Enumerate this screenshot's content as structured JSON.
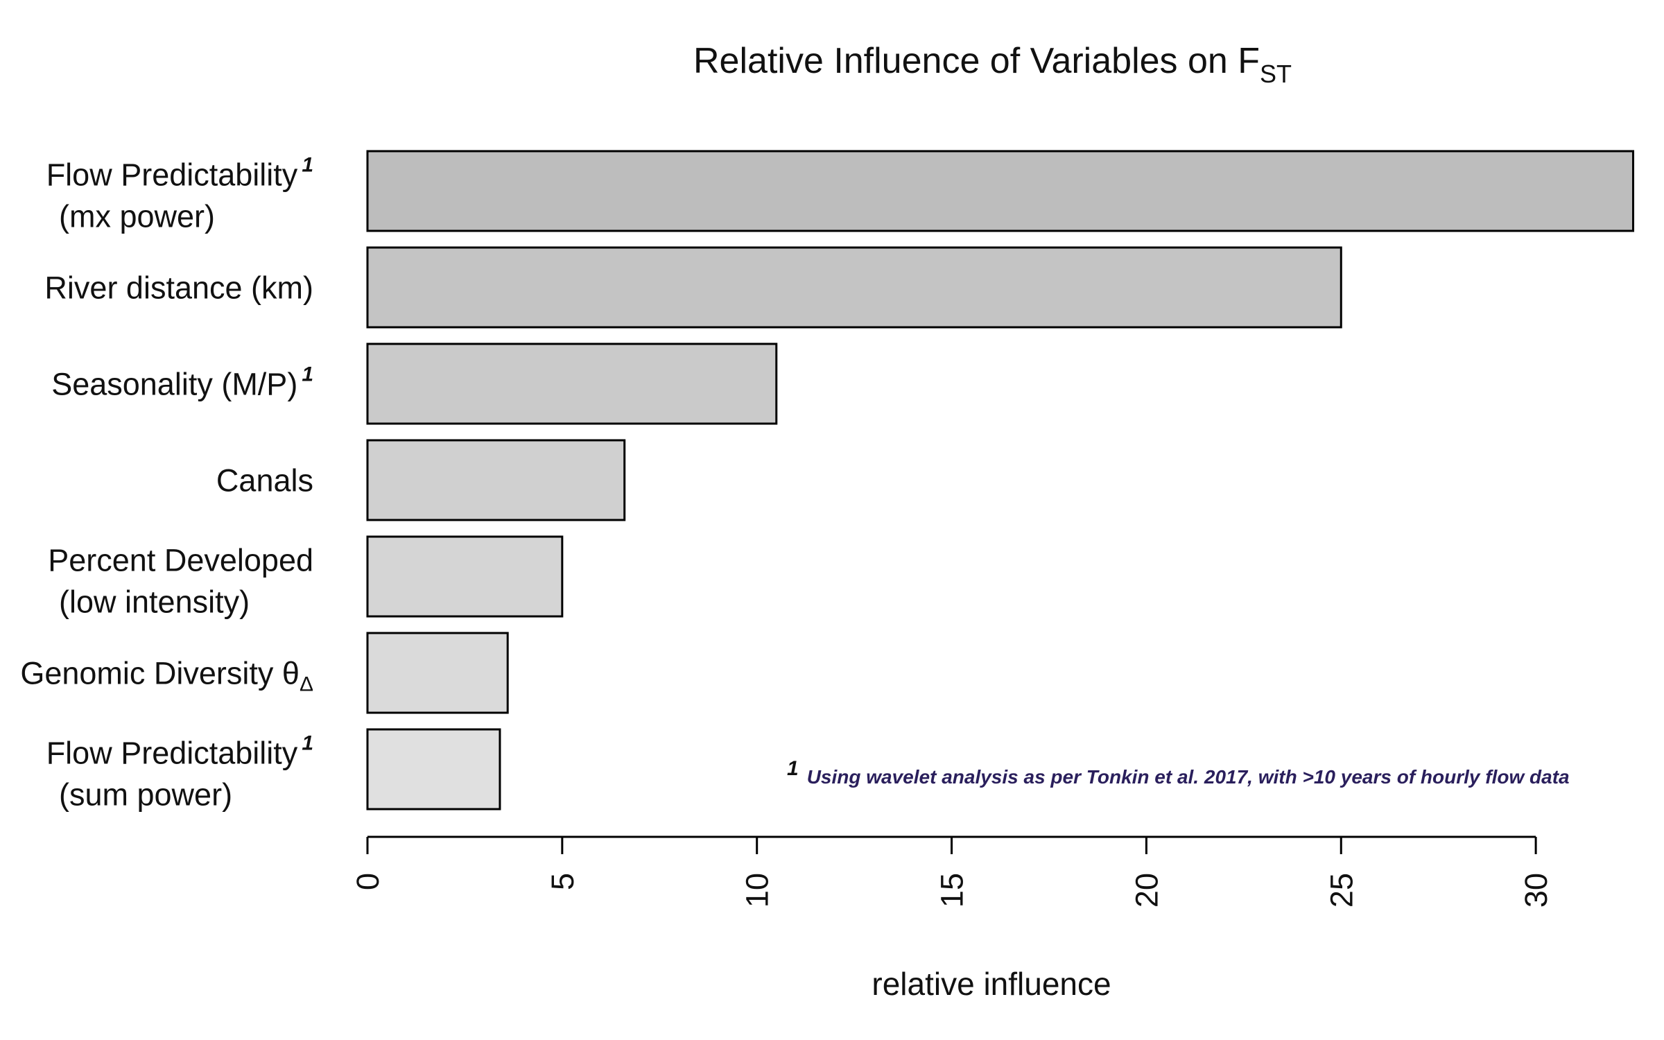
{
  "chart_data": {
    "type": "bar",
    "orientation": "horizontal",
    "title": "Relative Influence of Variables on F",
    "title_subscript": "ST",
    "xlabel": "relative influence",
    "ylabel": "",
    "xlim": [
      0,
      30
    ],
    "xticks": [
      0,
      5,
      10,
      15,
      20,
      25,
      30
    ],
    "grid": false,
    "categories": [
      {
        "line1": "Flow Predictability",
        "line1_sup": "1",
        "line1_sub": "",
        "line2": "(mx power)",
        "value": 32.5,
        "fill": "#bdbdbd"
      },
      {
        "line1": "River distance (km)",
        "line1_sup": "",
        "line1_sub": "",
        "line2": "",
        "value": 25.0,
        "fill": "#c4c4c4"
      },
      {
        "line1": "Seasonality (M/P)",
        "line1_sup": "1",
        "line1_sub": "",
        "line2": "",
        "value": 10.5,
        "fill": "#cacaca"
      },
      {
        "line1": "Canals",
        "line1_sup": "",
        "line1_sub": "",
        "line2": "",
        "value": 6.6,
        "fill": "#d0d0d0"
      },
      {
        "line1": "Percent Developed",
        "line1_sup": "",
        "line1_sub": "",
        "line2": "(low intensity)",
        "value": 5.0,
        "fill": "#d5d5d5"
      },
      {
        "line1": "Genomic Diversity θ",
        "line1_sup": "",
        "line1_sub": "Δ",
        "line2": "",
        "value": 3.6,
        "fill": "#dadada"
      },
      {
        "line1": "Flow Predictability",
        "line1_sup": "1",
        "line1_sub": "",
        "line2": "(sum power)",
        "value": 3.4,
        "fill": "#e0e0e0"
      }
    ],
    "footnote": {
      "marker": "1",
      "text": "Using wavelet analysis as per Tonkin et al. 2017, with >10 years of hourly flow data"
    }
  }
}
